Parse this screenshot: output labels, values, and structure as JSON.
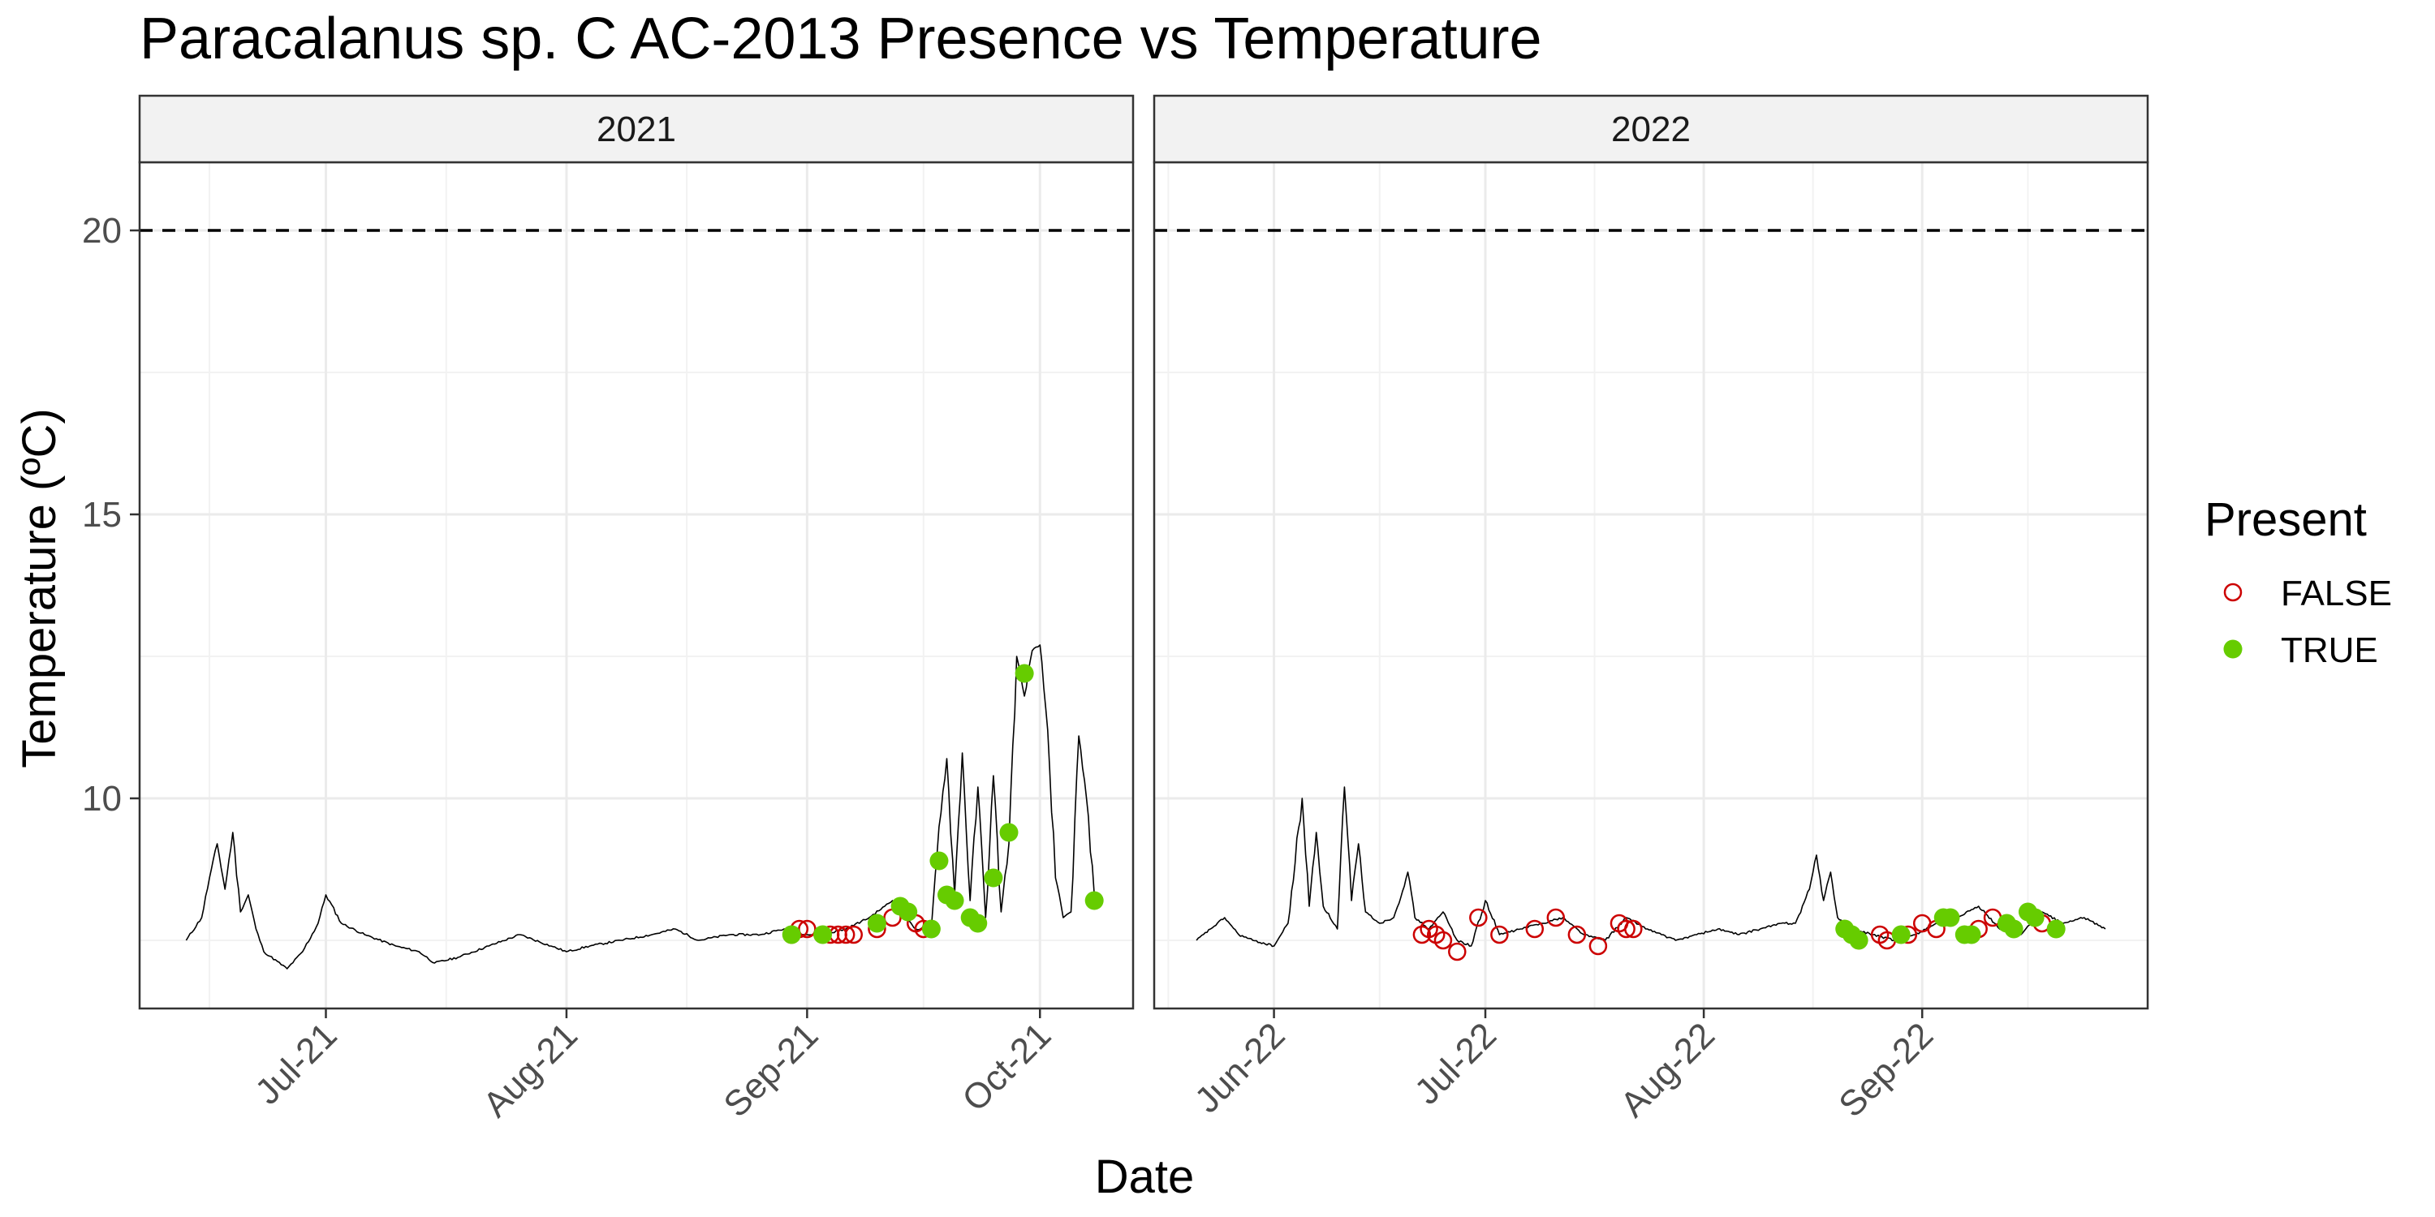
{
  "chart_data": {
    "type": "scatter",
    "title": "Paracalanus sp. C AC-2013 Presence vs Temperature",
    "xlabel": "Date",
    "ylabel": "Temperature (ºC)",
    "y_ticks": [
      10,
      15,
      20
    ],
    "ylim": [
      6.3,
      21.2
    ],
    "threshold": 20,
    "grid": true,
    "legend_position": "right",
    "legend": {
      "title": "Present",
      "entries": [
        {
          "label": "FALSE",
          "color": "#cc0000",
          "shape": "open-circle"
        },
        {
          "label": "TRUE",
          "color": "#66cc00",
          "shape": "filled-circle"
        }
      ]
    },
    "panels": [
      {
        "strip": "2021",
        "xlim": [
          "2021-06-07",
          "2021-10-13"
        ],
        "x_ticks": [
          {
            "date": "2021-07-01",
            "label": "Jul-21"
          },
          {
            "date": "2021-08-01",
            "label": "Aug-21"
          },
          {
            "date": "2021-09-01",
            "label": "Sep-21"
          },
          {
            "date": "2021-10-01",
            "label": "Oct-21"
          }
        ],
        "temperature_series": [
          [
            "2021-06-13",
            7.5
          ],
          [
            "2021-06-15",
            7.9
          ],
          [
            "2021-06-16",
            8.6
          ],
          [
            "2021-06-17",
            9.2
          ],
          [
            "2021-06-18",
            8.4
          ],
          [
            "2021-06-19",
            9.4
          ],
          [
            "2021-06-20",
            8.0
          ],
          [
            "2021-06-21",
            8.3
          ],
          [
            "2021-06-22",
            7.7
          ],
          [
            "2021-06-23",
            7.3
          ],
          [
            "2021-06-26",
            7.0
          ],
          [
            "2021-06-28",
            7.3
          ],
          [
            "2021-06-30",
            7.8
          ],
          [
            "2021-07-01",
            8.3
          ],
          [
            "2021-07-03",
            7.8
          ],
          [
            "2021-07-06",
            7.6
          ],
          [
            "2021-07-10",
            7.4
          ],
          [
            "2021-07-13",
            7.3
          ],
          [
            "2021-07-15",
            7.1
          ],
          [
            "2021-07-18",
            7.2
          ],
          [
            "2021-07-22",
            7.4
          ],
          [
            "2021-07-26",
            7.6
          ],
          [
            "2021-07-30",
            7.4
          ],
          [
            "2021-08-01",
            7.3
          ],
          [
            "2021-08-04",
            7.4
          ],
          [
            "2021-08-08",
            7.5
          ],
          [
            "2021-08-12",
            7.6
          ],
          [
            "2021-08-15",
            7.7
          ],
          [
            "2021-08-18",
            7.5
          ],
          [
            "2021-08-22",
            7.6
          ],
          [
            "2021-08-26",
            7.6
          ],
          [
            "2021-08-29",
            7.7
          ],
          [
            "2021-09-01",
            7.6
          ],
          [
            "2021-09-03",
            7.6
          ],
          [
            "2021-09-06",
            7.7
          ],
          [
            "2021-09-09",
            7.9
          ],
          [
            "2021-09-11",
            8.1
          ],
          [
            "2021-09-12",
            8.2
          ],
          [
            "2021-09-13",
            8.0
          ],
          [
            "2021-09-15",
            7.7
          ],
          [
            "2021-09-17",
            7.7
          ],
          [
            "2021-09-18",
            9.5
          ],
          [
            "2021-09-19",
            10.7
          ],
          [
            "2021-09-20",
            8.3
          ],
          [
            "2021-09-21",
            10.8
          ],
          [
            "2021-09-22",
            8.2
          ],
          [
            "2021-09-23",
            10.2
          ],
          [
            "2021-09-24",
            7.9
          ],
          [
            "2021-09-25",
            10.4
          ],
          [
            "2021-09-26",
            8.0
          ],
          [
            "2021-09-27",
            9.2
          ],
          [
            "2021-09-28",
            12.5
          ],
          [
            "2021-09-29",
            11.8
          ],
          [
            "2021-09-30",
            12.6
          ],
          [
            "2021-10-01",
            12.7
          ],
          [
            "2021-10-02",
            11.2
          ],
          [
            "2021-10-03",
            8.6
          ],
          [
            "2021-10-04",
            7.9
          ],
          [
            "2021-10-05",
            8.0
          ],
          [
            "2021-10-06",
            11.1
          ],
          [
            "2021-10-07",
            10.0
          ],
          [
            "2021-10-08",
            8.3
          ]
        ],
        "points": [
          {
            "date": "2021-08-30",
            "temp": 7.6,
            "present": false
          },
          {
            "date": "2021-08-31",
            "temp": 7.7,
            "present": false
          },
          {
            "date": "2021-09-01",
            "temp": 7.7,
            "present": false
          },
          {
            "date": "2021-09-04",
            "temp": 7.6,
            "present": false
          },
          {
            "date": "2021-09-05",
            "temp": 7.6,
            "present": false
          },
          {
            "date": "2021-09-06",
            "temp": 7.6,
            "present": false
          },
          {
            "date": "2021-09-07",
            "temp": 7.6,
            "present": false
          },
          {
            "date": "2021-09-10",
            "temp": 7.7,
            "present": false
          },
          {
            "date": "2021-09-12",
            "temp": 7.9,
            "present": false
          },
          {
            "date": "2021-09-15",
            "temp": 7.8,
            "present": false
          },
          {
            "date": "2021-09-16",
            "temp": 7.7,
            "present": false
          },
          {
            "date": "2021-08-30",
            "temp": 7.6,
            "present": true
          },
          {
            "date": "2021-09-03",
            "temp": 7.6,
            "present": true
          },
          {
            "date": "2021-09-10",
            "temp": 7.8,
            "present": true
          },
          {
            "date": "2021-09-13",
            "temp": 8.1,
            "present": true
          },
          {
            "date": "2021-09-14",
            "temp": 8.0,
            "present": true
          },
          {
            "date": "2021-09-17",
            "temp": 7.7,
            "present": true
          },
          {
            "date": "2021-09-18",
            "temp": 8.9,
            "present": true
          },
          {
            "date": "2021-09-19",
            "temp": 8.3,
            "present": true
          },
          {
            "date": "2021-09-20",
            "temp": 8.2,
            "present": true
          },
          {
            "date": "2021-09-22",
            "temp": 7.9,
            "present": true
          },
          {
            "date": "2021-09-23",
            "temp": 7.8,
            "present": true
          },
          {
            "date": "2021-09-25",
            "temp": 8.6,
            "present": true
          },
          {
            "date": "2021-09-27",
            "temp": 9.4,
            "present": true
          },
          {
            "date": "2021-09-29",
            "temp": 12.2,
            "present": true
          },
          {
            "date": "2021-10-08",
            "temp": 8.2,
            "present": true
          }
        ]
      },
      {
        "strip": "2022",
        "xlim": [
          "2022-05-15",
          "2022-10-03"
        ],
        "x_ticks": [
          {
            "date": "2022-06-01",
            "label": "Jun-22"
          },
          {
            "date": "2022-07-01",
            "label": "Jul-22"
          },
          {
            "date": "2022-08-01",
            "label": "Aug-22"
          },
          {
            "date": "2022-09-01",
            "label": "Sep-22"
          }
        ],
        "temperature_series": [
          [
            "2022-05-21",
            7.5
          ],
          [
            "2022-05-23",
            7.7
          ],
          [
            "2022-05-25",
            7.9
          ],
          [
            "2022-05-27",
            7.6
          ],
          [
            "2022-05-29",
            7.5
          ],
          [
            "2022-06-01",
            7.4
          ],
          [
            "2022-06-03",
            7.8
          ],
          [
            "2022-06-05",
            10.0
          ],
          [
            "2022-06-06",
            8.1
          ],
          [
            "2022-06-07",
            9.4
          ],
          [
            "2022-06-08",
            8.1
          ],
          [
            "2022-06-10",
            7.7
          ],
          [
            "2022-06-11",
            10.2
          ],
          [
            "2022-06-12",
            8.2
          ],
          [
            "2022-06-13",
            9.2
          ],
          [
            "2022-06-14",
            8.0
          ],
          [
            "2022-06-16",
            7.8
          ],
          [
            "2022-06-18",
            7.9
          ],
          [
            "2022-06-20",
            8.7
          ],
          [
            "2022-06-21",
            7.9
          ],
          [
            "2022-06-23",
            7.7
          ],
          [
            "2022-06-25",
            8.0
          ],
          [
            "2022-06-27",
            7.5
          ],
          [
            "2022-06-29",
            7.4
          ],
          [
            "2022-07-01",
            8.2
          ],
          [
            "2022-07-03",
            7.6
          ],
          [
            "2022-07-06",
            7.7
          ],
          [
            "2022-07-09",
            7.8
          ],
          [
            "2022-07-12",
            7.9
          ],
          [
            "2022-07-15",
            7.6
          ],
          [
            "2022-07-18",
            7.5
          ],
          [
            "2022-07-21",
            7.9
          ],
          [
            "2022-07-24",
            7.7
          ],
          [
            "2022-07-26",
            7.6
          ],
          [
            "2022-07-28",
            7.5
          ],
          [
            "2022-07-31",
            7.6
          ],
          [
            "2022-08-03",
            7.7
          ],
          [
            "2022-08-06",
            7.6
          ],
          [
            "2022-08-09",
            7.7
          ],
          [
            "2022-08-12",
            7.8
          ],
          [
            "2022-08-14",
            7.8
          ],
          [
            "2022-08-16",
            8.4
          ],
          [
            "2022-08-17",
            9.0
          ],
          [
            "2022-08-18",
            8.2
          ],
          [
            "2022-08-19",
            8.7
          ],
          [
            "2022-08-20",
            7.9
          ],
          [
            "2022-08-22",
            7.7
          ],
          [
            "2022-08-25",
            7.6
          ],
          [
            "2022-08-28",
            7.5
          ],
          [
            "2022-08-31",
            7.6
          ],
          [
            "2022-09-03",
            7.8
          ],
          [
            "2022-09-06",
            7.9
          ],
          [
            "2022-09-09",
            8.1
          ],
          [
            "2022-09-12",
            7.7
          ],
          [
            "2022-09-15",
            7.6
          ],
          [
            "2022-09-18",
            8.0
          ],
          [
            "2022-09-21",
            7.8
          ],
          [
            "2022-09-24",
            7.9
          ],
          [
            "2022-09-27",
            7.7
          ]
        ],
        "points": [
          {
            "date": "2022-06-22",
            "temp": 7.6,
            "present": false
          },
          {
            "date": "2022-06-23",
            "temp": 7.7,
            "present": false
          },
          {
            "date": "2022-06-24",
            "temp": 7.6,
            "present": false
          },
          {
            "date": "2022-06-25",
            "temp": 7.5,
            "present": false
          },
          {
            "date": "2022-06-27",
            "temp": 7.3,
            "present": false
          },
          {
            "date": "2022-06-30",
            "temp": 7.9,
            "present": false
          },
          {
            "date": "2022-07-03",
            "temp": 7.6,
            "present": false
          },
          {
            "date": "2022-07-08",
            "temp": 7.7,
            "present": false
          },
          {
            "date": "2022-07-11",
            "temp": 7.9,
            "present": false
          },
          {
            "date": "2022-07-14",
            "temp": 7.6,
            "present": false
          },
          {
            "date": "2022-07-17",
            "temp": 7.4,
            "present": false
          },
          {
            "date": "2022-07-20",
            "temp": 7.8,
            "present": false
          },
          {
            "date": "2022-07-21",
            "temp": 7.7,
            "present": false
          },
          {
            "date": "2022-07-22",
            "temp": 7.7,
            "present": false
          },
          {
            "date": "2022-08-23",
            "temp": 7.5,
            "present": false
          },
          {
            "date": "2022-08-26",
            "temp": 7.6,
            "present": false
          },
          {
            "date": "2022-08-27",
            "temp": 7.5,
            "present": false
          },
          {
            "date": "2022-08-30",
            "temp": 7.6,
            "present": false
          },
          {
            "date": "2022-09-01",
            "temp": 7.8,
            "present": false
          },
          {
            "date": "2022-09-03",
            "temp": 7.7,
            "present": false
          },
          {
            "date": "2022-09-09",
            "temp": 7.7,
            "present": false
          },
          {
            "date": "2022-09-11",
            "temp": 7.9,
            "present": false
          },
          {
            "date": "2022-09-18",
            "temp": 7.8,
            "present": false
          },
          {
            "date": "2022-08-21",
            "temp": 7.7,
            "present": true
          },
          {
            "date": "2022-08-22",
            "temp": 7.6,
            "present": true
          },
          {
            "date": "2022-08-23",
            "temp": 7.5,
            "present": true
          },
          {
            "date": "2022-08-29",
            "temp": 7.6,
            "present": true
          },
          {
            "date": "2022-09-04",
            "temp": 7.9,
            "present": true
          },
          {
            "date": "2022-09-05",
            "temp": 7.9,
            "present": true
          },
          {
            "date": "2022-09-07",
            "temp": 7.6,
            "present": true
          },
          {
            "date": "2022-09-08",
            "temp": 7.6,
            "present": true
          },
          {
            "date": "2022-09-13",
            "temp": 7.8,
            "present": true
          },
          {
            "date": "2022-09-14",
            "temp": 7.7,
            "present": true
          },
          {
            "date": "2022-09-16",
            "temp": 8.0,
            "present": true
          },
          {
            "date": "2022-09-17",
            "temp": 7.9,
            "present": true
          },
          {
            "date": "2022-09-20",
            "temp": 7.7,
            "present": true
          }
        ]
      }
    ]
  }
}
